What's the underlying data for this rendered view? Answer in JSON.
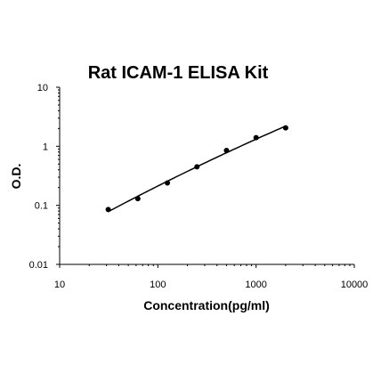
{
  "chart_data": {
    "type": "scatter",
    "title": "Rat ICAM-1 ELISA Kit",
    "xlabel": "Concentration(pg/ml)",
    "ylabel": "O.D.",
    "xscale": "log",
    "yscale": "log",
    "xlim": [
      10,
      10000
    ],
    "ylim": [
      0.01,
      10
    ],
    "x_ticks": [
      "10",
      "100",
      "1000",
      "10000"
    ],
    "y_ticks": [
      "0.01",
      "0.1",
      "1",
      "10"
    ],
    "grid": false,
    "legend": "none",
    "series": [
      {
        "points": [
          {
            "x": 31.25,
            "y": 0.085
          },
          {
            "x": 62.5,
            "y": 0.13
          },
          {
            "x": 125,
            "y": 0.24
          },
          {
            "x": 250,
            "y": 0.45
          },
          {
            "x": 500,
            "y": 0.85
          },
          {
            "x": 1000,
            "y": 1.4
          },
          {
            "x": 2000,
            "y": 2.05
          }
        ],
        "fit_line": true,
        "color": "#000000"
      }
    ]
  }
}
